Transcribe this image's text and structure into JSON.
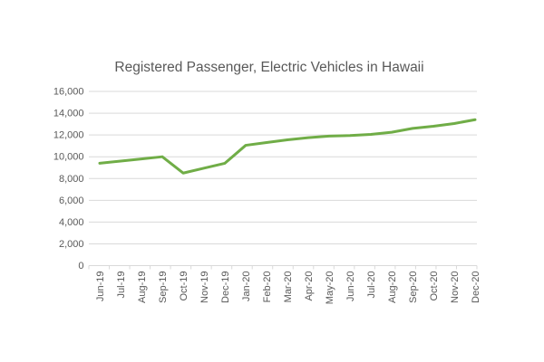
{
  "chart": {
    "title": "Registered Passenger, Electric Vehicles in Hawaii"
  },
  "chart_data": {
    "type": "line",
    "title": "Registered Passenger, Electric Vehicles in Hawaii",
    "categories": [
      "Jun-19",
      "Jul-19",
      "Aug-19",
      "Sep-19",
      "Oct-19",
      "Nov-19",
      "Dec-19",
      "Jan-20",
      "Feb-20",
      "Mar-20",
      "Apr-20",
      "May-20",
      "Jun-20",
      "Jul-20",
      "Aug-20",
      "Sep-20",
      "Oct-20",
      "Nov-20",
      "Dec-20"
    ],
    "series": [
      {
        "name": "Registered passenger electric vehicles",
        "values": [
          9400,
          9600,
          9800,
          10000,
          8500,
          8950,
          9400,
          11050,
          11300,
          11550,
          11750,
          11900,
          11950,
          12050,
          12250,
          12600,
          12800,
          13050,
          13400
        ]
      }
    ],
    "xlabel": "",
    "ylabel": "",
    "ylim": [
      0,
      16000
    ],
    "ytick_step": 2000,
    "ytick_labels": [
      "0",
      "2,000",
      "4,000",
      "6,000",
      "8,000",
      "10,000",
      "12,000",
      "14,000",
      "16,000"
    ],
    "grid": true,
    "legend": false,
    "x_labels_rotated_degrees": 90,
    "colors": {
      "line": "#70AD47",
      "labels": "#595959",
      "title": "#595959",
      "gridlines": "#D9D9D9",
      "axis": "#D9D9D9",
      "background": "#FFFFFF"
    }
  }
}
